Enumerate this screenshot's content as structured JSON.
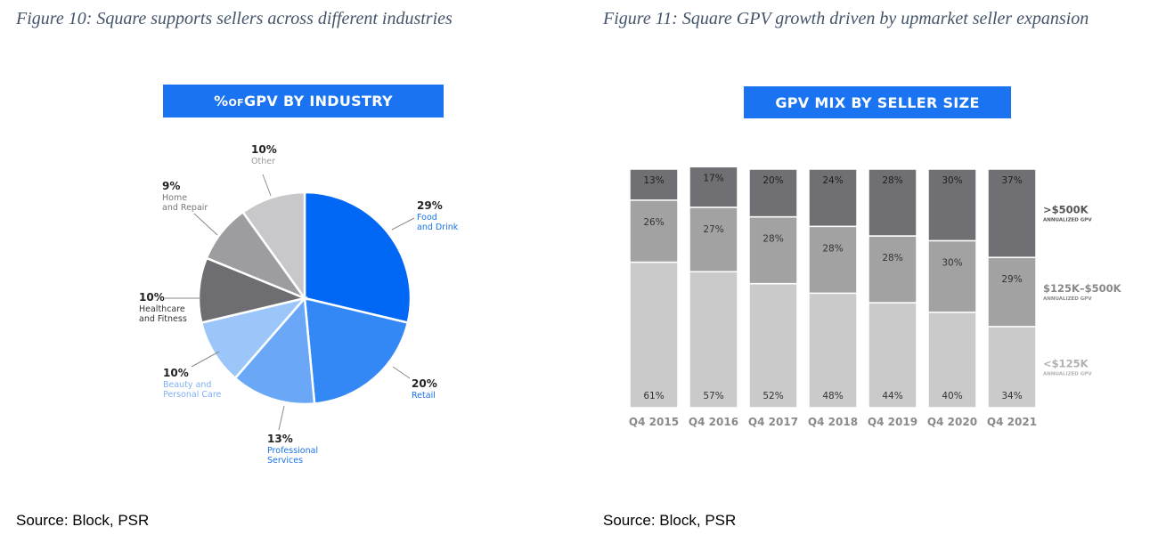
{
  "figures": [
    {
      "caption": "Figure 10: Square supports sellers across different industries",
      "source": "Source: Block, PSR",
      "banner": {
        "part1": "% ",
        "part2": "of",
        "part3": " GPV BY INDUSTRY"
      }
    },
    {
      "caption": "Figure 11: Square GPV growth driven by upmarket seller expansion",
      "source": "Source: Block, PSR",
      "banner": {
        "text": "GPV MIX BY SELLER SIZE"
      }
    }
  ],
  "chart_data": [
    {
      "type": "pie",
      "title": "% of GPV BY INDUSTRY",
      "slices": [
        {
          "pct": "29%",
          "value": 29,
          "label": "Food\nand Drink",
          "color": "#0068f5",
          "label_color": "#1a73e8"
        },
        {
          "pct": "20%",
          "value": 20,
          "label": "Retail",
          "color": "#3388f5",
          "label_color": "#1a73e8"
        },
        {
          "pct": "13%",
          "value": 13,
          "label": "Professional\nServices",
          "color": "#6aa8f7",
          "label_color": "#1a73e8"
        },
        {
          "pct": "10%",
          "value": 10,
          "label": "Beauty and\nPersonal Care",
          "color": "#9cc6fa",
          "label_color": "#7fb2f4"
        },
        {
          "pct": "10%",
          "value": 10,
          "label": "Healthcare\nand Fitness",
          "color": "#6e6e72",
          "label_color": "#333333"
        },
        {
          "pct": "9%",
          "value": 9,
          "label": "Home\nand Repair",
          "color": "#9d9da1",
          "label_color": "#777777"
        },
        {
          "pct": "10%",
          "value": 10,
          "label": "Other",
          "color": "#c8c8cb",
          "label_color": "#999999"
        }
      ]
    },
    {
      "type": "bar",
      "stacked": true,
      "title": "GPV MIX BY SELLER SIZE",
      "categories": [
        "Q4 2015",
        "Q4 2016",
        "Q4 2017",
        "Q4 2018",
        "Q4 2019",
        "Q4 2020",
        "Q4 2021"
      ],
      "series": [
        {
          "name": "<$125K",
          "subtitle": "ANNUALIZED GPV",
          "values": [
            61,
            57,
            52,
            48,
            44,
            40,
            34
          ],
          "color": "#cacaca",
          "legend_color": "#b0b0b0"
        },
        {
          "name": "$125K–$500K",
          "subtitle": "ANNUALIZED GPV",
          "values": [
            26,
            27,
            28,
            28,
            28,
            30,
            29
          ],
          "color": "#a2a2a3",
          "legend_color": "#888888"
        },
        {
          "name": ">$500K",
          "subtitle": "ANNUALIZED GPV",
          "values": [
            13,
            17,
            20,
            24,
            28,
            30,
            37
          ],
          "color": "#707074",
          "legend_color": "#555555"
        }
      ],
      "ylim": [
        0,
        100
      ]
    }
  ]
}
